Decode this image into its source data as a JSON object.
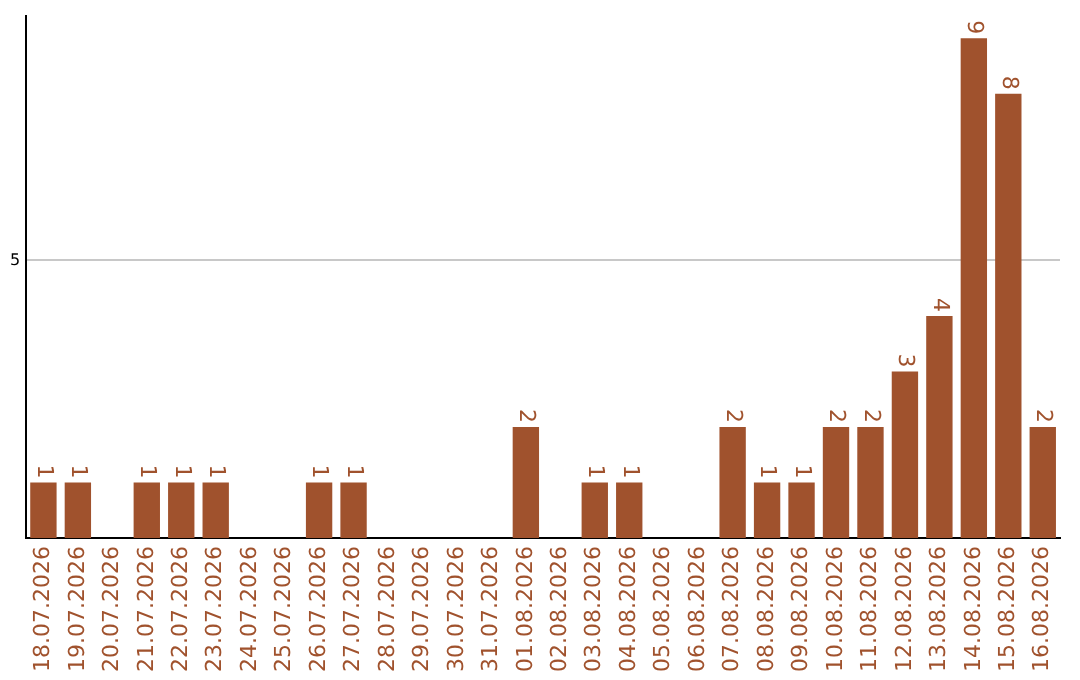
{
  "chart_data": {
    "type": "bar",
    "categories": [
      "18.07.2026",
      "19.07.2026",
      "20.07.2026",
      "21.07.2026",
      "22.07.2026",
      "23.07.2026",
      "24.07.2026",
      "25.07.2026",
      "26.07.2026",
      "27.07.2026",
      "28.07.2026",
      "29.07.2026",
      "30.07.2026",
      "31.07.2026",
      "01.08.2026",
      "02.08.2026",
      "03.08.2026",
      "04.08.2026",
      "05.08.2026",
      "06.08.2026",
      "07.08.2026",
      "08.08.2026",
      "09.08.2026",
      "10.08.2026",
      "11.08.2026",
      "12.08.2026",
      "13.08.2026",
      "14.08.2026",
      "15.08.2026",
      "16.08.2026"
    ],
    "values": [
      1,
      1,
      0,
      1,
      1,
      1,
      0,
      0,
      1,
      1,
      0,
      0,
      0,
      0,
      2,
      0,
      1,
      1,
      0,
      0,
      2,
      1,
      1,
      2,
      2,
      3,
      4,
      9,
      8,
      2
    ],
    "value_labels": [
      "1",
      "1",
      null,
      "1",
      "1",
      "1",
      null,
      null,
      "1",
      "1",
      null,
      null,
      null,
      null,
      "2",
      null,
      "1",
      "1",
      null,
      null,
      "2",
      "1",
      "1",
      "2",
      "2",
      "3",
      "4",
      "9",
      "8",
      "2"
    ],
    "color": "#a0522d",
    "ylim": [
      0,
      9.4
    ],
    "yticks": [
      5
    ],
    "grid": "y",
    "legend": false
  }
}
